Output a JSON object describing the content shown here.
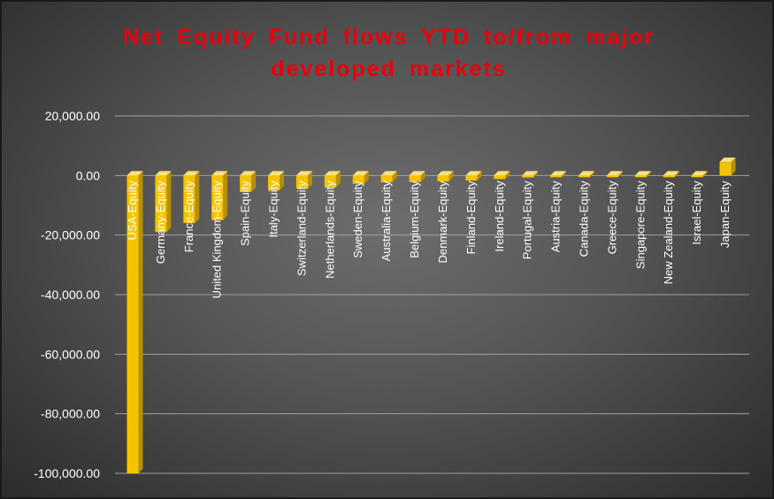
{
  "chart_data": {
    "type": "bar",
    "title_lines": [
      "Net Equity  Fund  flows  YTD  to/from  major",
      "developed  markets"
    ],
    "xlabel": "",
    "ylabel": "",
    "ylim": [
      -100000,
      20000
    ],
    "yticks": [
      20000,
      0,
      -20000,
      -40000,
      -60000,
      -80000,
      -100000
    ],
    "ytick_labels": [
      "20,000.00",
      "0.00",
      "-20,000.00",
      "-40,000.00",
      "-60,000.00",
      "-80,000.00",
      "-100,000.00"
    ],
    "grid": true,
    "legend": "none",
    "bar_color": "#f5c400",
    "categories": [
      "USA-Equity",
      "Germany-Equity",
      "France-Equity",
      "United Kingdom-Equity",
      "Spain-Equity",
      "Italy-Equity",
      "Switzerland-Equity",
      "Netherlands-Equity",
      "Sweden-Equity",
      "Australia-Equity",
      "Belgium-Equity",
      "Denmark-Equity",
      "Finland-Equity",
      "Ireland-Equity",
      "Portugal-Equity",
      "Austria-Equity",
      "Canada-Equity",
      "Greece-Equity",
      "Singapore-Equity",
      "New Zealand-Equity",
      "Israel-Equity",
      "Japan-Equity"
    ],
    "values": [
      -100000,
      -19000,
      -16000,
      -15000,
      -5500,
      -5000,
      -4500,
      -4000,
      -2800,
      -2300,
      -2200,
      -2000,
      -1700,
      -1200,
      -700,
      -600,
      -400,
      -300,
      -250,
      -200,
      -150,
      4500
    ]
  }
}
